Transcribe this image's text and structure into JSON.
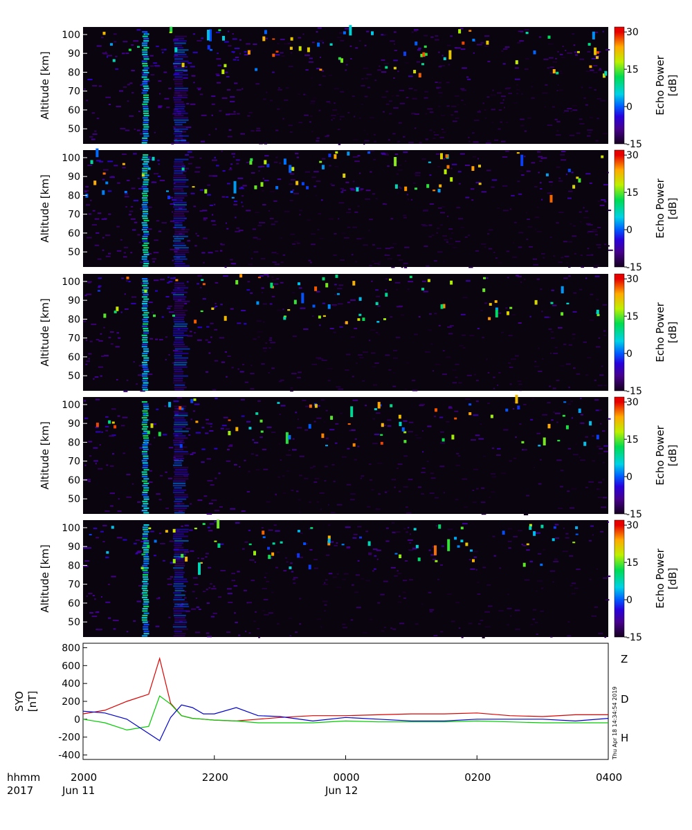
{
  "radar_panels": {
    "y_label": "Altitude  [km]",
    "y_ticks": [
      "50",
      "60",
      "70",
      "80",
      "90",
      "100"
    ],
    "colorbar_title_line1": "Echo Power",
    "colorbar_title_line2": "[dB]",
    "colorbar_ticks": [
      "30",
      "15",
      "0",
      "-15"
    ],
    "panel_count": 5
  },
  "magnetometer": {
    "y_label_line1": "SYO",
    "y_label_line2": "[nT]",
    "y_ticks": [
      "800",
      "600",
      "400",
      "200",
      "0",
      "-200",
      "-400"
    ],
    "legend": {
      "z": "Z",
      "d": "D",
      "h": "H"
    },
    "timestamp": "Thu Apr 18 14:34:54 2019"
  },
  "time_axis": {
    "row1_left": "hhmm",
    "row2_left": "2017",
    "ticks": [
      "2000",
      "2200",
      "0000",
      "0200",
      "0400"
    ],
    "date_labels": {
      "start": "Jun 11",
      "mid": "Jun 12"
    }
  },
  "colors": {
    "z": "#dd0000",
    "d": "#00cc00",
    "h": "#0000cc",
    "panel_bg": "#0a040e"
  },
  "chart_data": [
    {
      "type": "heatmap",
      "title": "",
      "xlabel": "hhmm",
      "ylabel": "Altitude [km]",
      "xlim": [
        "2017-06-11 20:00",
        "2017-06-12 04:00"
      ],
      "ylim": [
        42,
        104
      ],
      "colorbar": {
        "label": "Echo Power [dB]",
        "range": [
          -15,
          32
        ],
        "ticks": [
          -15,
          0,
          15,
          30
        ]
      },
      "panels": 5,
      "features": [
        {
          "time": "2017-06-11 20:57",
          "altitude_range": [
            43,
            103
          ],
          "echo_power_db": 5,
          "note": "strong vertical echo band"
        },
        {
          "time": "2017-06-11 21:30",
          "altitude_range": [
            43,
            100
          ],
          "echo_power_db": -5,
          "note": "secondary enhancement"
        }
      ]
    },
    {
      "type": "line",
      "title": "",
      "xlabel": "hhmm",
      "ylabel": "SYO [nT]",
      "ylim": [
        -450,
        850
      ],
      "x": [
        "20:00",
        "20:20",
        "20:40",
        "21:00",
        "21:10",
        "21:20",
        "21:30",
        "21:40",
        "21:50",
        "22:00",
        "22:20",
        "22:40",
        "23:00",
        "23:30",
        "00:00",
        "00:30",
        "01:00",
        "01:30",
        "02:00",
        "02:30",
        "03:00",
        "03:30",
        "04:00"
      ],
      "series": [
        {
          "name": "Z",
          "values": [
            60,
            100,
            200,
            280,
            680,
            180,
            40,
            10,
            0,
            -10,
            -20,
            0,
            20,
            40,
            40,
            50,
            60,
            60,
            70,
            40,
            30,
            50,
            50
          ]
        },
        {
          "name": "D",
          "values": [
            0,
            -40,
            -120,
            -80,
            260,
            170,
            40,
            10,
            0,
            -10,
            -20,
            -40,
            -40,
            -40,
            -20,
            -30,
            -30,
            -30,
            -20,
            -30,
            -40,
            -40,
            -40
          ]
        },
        {
          "name": "H",
          "values": [
            90,
            70,
            0,
            -160,
            -240,
            20,
            160,
            130,
            60,
            60,
            130,
            40,
            30,
            -20,
            20,
            0,
            -20,
            -20,
            0,
            0,
            0,
            -20,
            10
          ]
        }
      ]
    }
  ]
}
